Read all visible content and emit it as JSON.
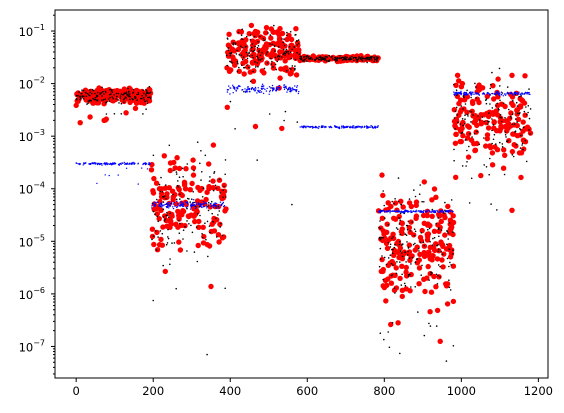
{
  "chart_data": {
    "type": "scatter",
    "title": "",
    "xlabel": "",
    "ylabel": "",
    "x_scale": "linear",
    "y_scale": "log",
    "xlim": [
      -55,
      1225
    ],
    "ylim_exponent": [
      -7.6,
      -0.6
    ],
    "grid": false,
    "legend": "none",
    "x_ticks": [
      {
        "value": 0,
        "label": "0"
      },
      {
        "value": 200,
        "label": "200"
      },
      {
        "value": 400,
        "label": "400"
      },
      {
        "value": 600,
        "label": "600"
      },
      {
        "value": 800,
        "label": "800"
      },
      {
        "value": 1000,
        "label": "1000"
      },
      {
        "value": 1200,
        "label": "1200"
      }
    ],
    "y_ticks": [
      {
        "exponent": -7,
        "label_base": "10",
        "label_exp": "−7"
      },
      {
        "exponent": -6,
        "label_base": "10",
        "label_exp": "−6"
      },
      {
        "exponent": -5,
        "label_base": "10",
        "label_exp": "−5"
      },
      {
        "exponent": -4,
        "label_base": "10",
        "label_exp": "−4"
      },
      {
        "exponent": -3,
        "label_base": "10",
        "label_exp": "−3"
      },
      {
        "exponent": -2,
        "label_base": "10",
        "label_exp": "−2"
      },
      {
        "exponent": -1,
        "label_base": "10",
        "label_exp": "−1"
      }
    ],
    "series": [
      {
        "color": "#ff0000",
        "marker": "circle-large",
        "segments": [
          {
            "x": [
              0,
              195
            ],
            "center": 0.0058,
            "spread_decades": 0.2,
            "dips_to": 0.0015,
            "count": 190
          },
          {
            "x": [
              195,
              390
            ],
            "center": 5e-05,
            "spread_decades": 1.4,
            "dips_to": 1.3e-06,
            "count": 150
          },
          {
            "x": [
              390,
              580
            ],
            "center": 0.04,
            "spread_decades": 0.7,
            "dips_to": 0.0013,
            "count": 170
          },
          {
            "x": [
              580,
              785
            ],
            "center": 0.03,
            "spread_decades": 0.07,
            "dips_to": 0.025,
            "count": 150
          },
          {
            "x": [
              785,
              980
            ],
            "center": 1e-05,
            "spread_decades": 1.4,
            "dips_to": 5e-08,
            "count": 200
          },
          {
            "x": [
              980,
              1180
            ],
            "center": 0.002,
            "spread_decades": 1.2,
            "dips_to": 2e-05,
            "count": 160
          }
        ]
      },
      {
        "color": "#000000",
        "marker": "dot-small",
        "segments": [
          {
            "x": [
              0,
              195
            ],
            "center": 0.006,
            "spread_decades": 0.2,
            "dips_to": 0.002,
            "count": 150
          },
          {
            "x": [
              195,
              390
            ],
            "center": 5e-05,
            "spread_decades": 1.5,
            "dips_to": 7.5e-07,
            "count": 140
          },
          {
            "x": [
              390,
              580
            ],
            "center": 0.04,
            "spread_decades": 0.7,
            "dips_to": 0.0013,
            "count": 160
          },
          {
            "x": [
              580,
              785
            ],
            "center": 0.03,
            "spread_decades": 0.07,
            "dips_to": 0.025,
            "count": 150
          },
          {
            "x": [
              785,
              980
            ],
            "center": 1e-05,
            "spread_decades": 1.5,
            "dips_to": 5e-08,
            "count": 180
          },
          {
            "x": [
              980,
              1180
            ],
            "center": 0.002,
            "spread_decades": 1.2,
            "dips_to": 2e-05,
            "count": 150
          }
        ],
        "outliers": [
          {
            "x": 340,
            "y": 7e-08
          },
          {
            "x": 200,
            "y": 7.5e-07
          },
          {
            "x": 470,
            "y": 0.00035
          },
          {
            "x": 560,
            "y": 5e-05
          }
        ]
      },
      {
        "color": "#0000ff",
        "marker": "dot-tiny",
        "segments": [
          {
            "x": [
              0,
              195
            ],
            "center": 0.0003,
            "spread_decades": 0.03,
            "dips_to": 0.0001,
            "count": 140
          },
          {
            "x": [
              195,
              390
            ],
            "center": 5e-05,
            "spread_decades": 0.1,
            "dips_to": 4e-05,
            "count": 150
          },
          {
            "x": [
              390,
              580
            ],
            "center": 0.008,
            "spread_decades": 0.12,
            "dips_to": 0.006,
            "count": 150
          },
          {
            "x": [
              580,
              785
            ],
            "center": 0.0015,
            "spread_decades": 0.03,
            "dips_to": 0.0014,
            "count": 150
          },
          {
            "x": [
              785,
              980
            ],
            "center": 3.7e-05,
            "spread_decades": 0.03,
            "dips_to": 3.4e-05,
            "count": 150
          },
          {
            "x": [
              980,
              1180
            ],
            "center": 0.0065,
            "spread_decades": 0.05,
            "dips_to": 0.0058,
            "count": 150
          }
        ]
      }
    ]
  }
}
